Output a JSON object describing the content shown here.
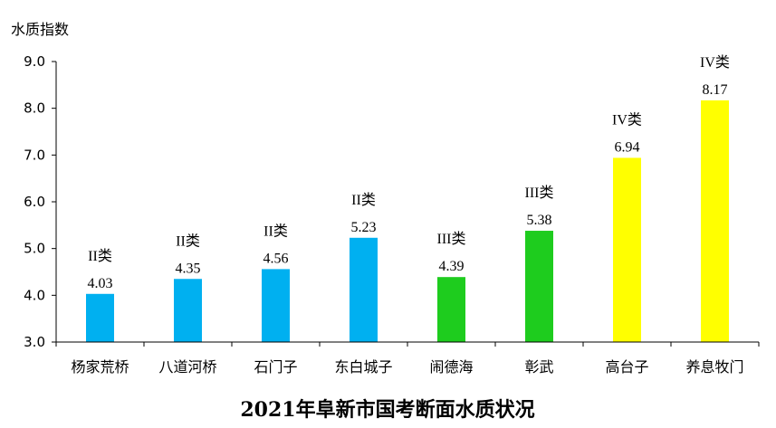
{
  "chart_data": {
    "type": "bar",
    "title": "2021年阜新市国考断面水质状况",
    "ylabel": "水质指数",
    "xlabel": "",
    "ylim": [
      3.0,
      9.0
    ],
    "yticks": [
      "3.0",
      "4.0",
      "5.0",
      "6.0",
      "7.0",
      "8.0",
      "9.0"
    ],
    "grid": false,
    "categories": [
      "杨家荒桥",
      "八道河桥",
      "石门子",
      "东白城子",
      "闹德海",
      "彰武",
      "高台子",
      "养息牧门"
    ],
    "values": [
      4.03,
      4.35,
      4.56,
      5.23,
      4.39,
      5.38,
      6.94,
      8.17
    ],
    "value_labels": [
      "4.03",
      "4.35",
      "4.56",
      "5.23",
      "4.39",
      "5.38",
      "6.94",
      "8.17"
    ],
    "class_labels": [
      "II类",
      "II类",
      "II类",
      "II类",
      "III类",
      "III类",
      "IV类",
      "IV类"
    ],
    "bar_colors": [
      "#00B0F0",
      "#00B0F0",
      "#00B0F0",
      "#00B0F0",
      "#1ECC1E",
      "#1ECC1E",
      "#FFFF00",
      "#FFFF00"
    ]
  }
}
